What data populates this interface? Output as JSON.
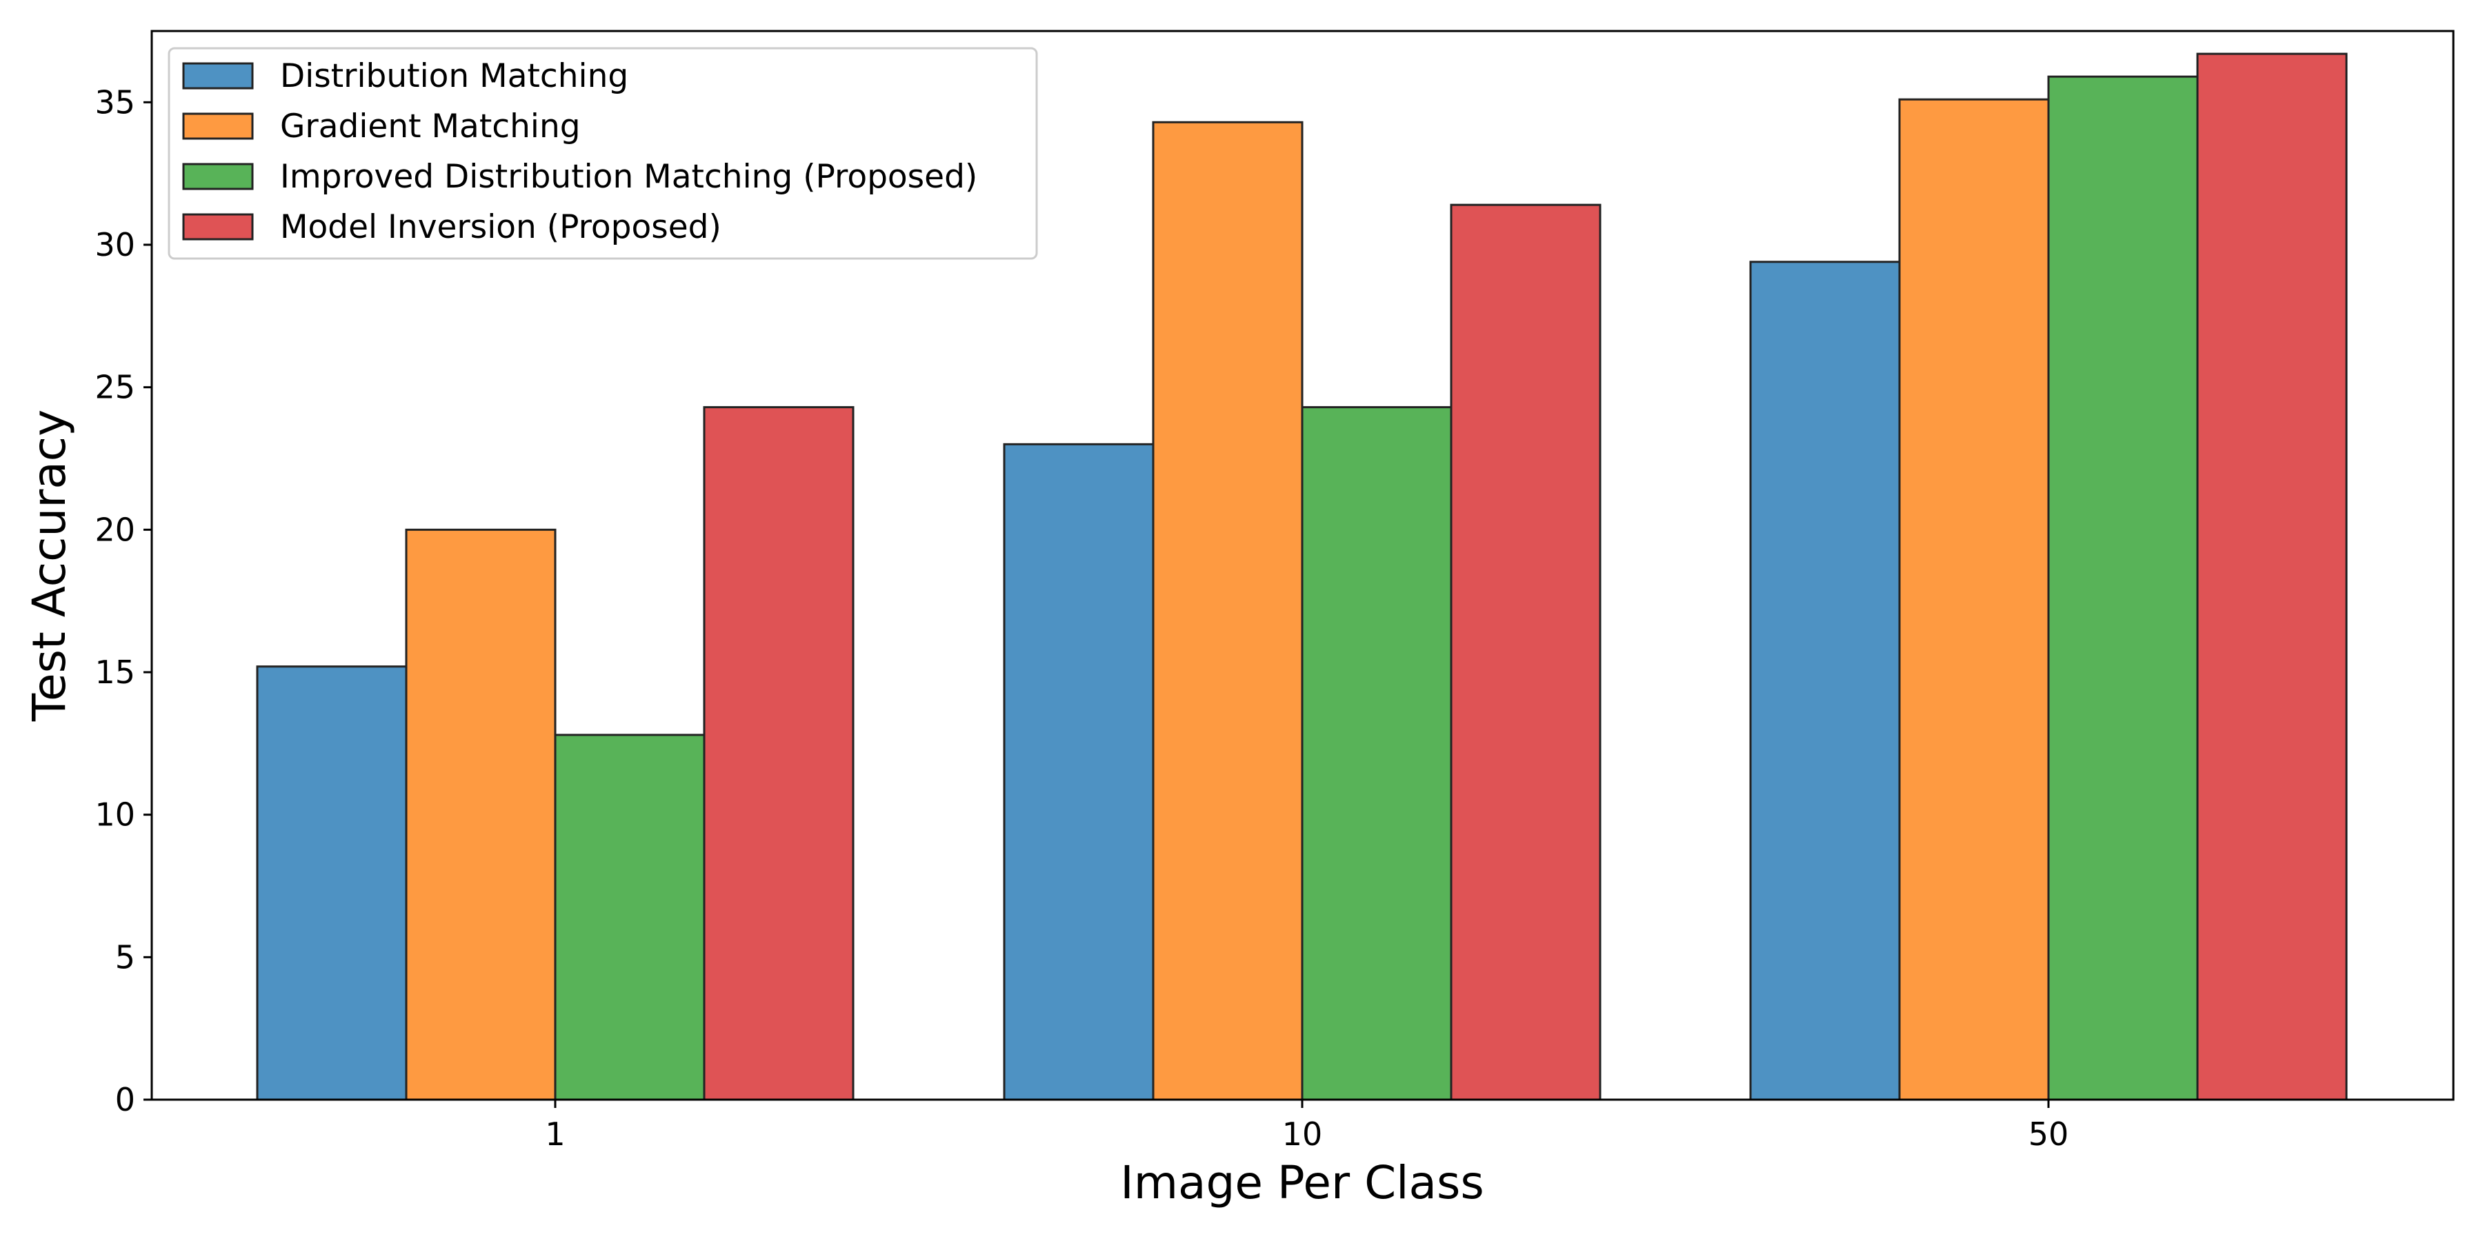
{
  "chart_data": {
    "type": "bar",
    "title": "",
    "xlabel": "Image Per Class",
    "ylabel": "Test Accuracy",
    "categories": [
      "1",
      "10",
      "50"
    ],
    "ylim": [
      0,
      37.5
    ],
    "yticks": [
      0,
      5,
      10,
      15,
      20,
      25,
      30,
      35
    ],
    "grid": false,
    "legend_position": "top-left",
    "series": [
      {
        "name": "Distribution Matching",
        "color": "#4e92c3",
        "values": [
          15.2,
          23.0,
          29.4
        ]
      },
      {
        "name": "Gradient Matching",
        "color": "#fe9a41",
        "values": [
          20.0,
          34.3,
          35.1
        ]
      },
      {
        "name": "Improved Distribution Matching (Proposed)",
        "color": "#58b358",
        "values": [
          12.8,
          24.3,
          35.9
        ]
      },
      {
        "name": "Model Inversion (Proposed)",
        "color": "#df5355",
        "values": [
          24.3,
          31.4,
          36.7
        ]
      }
    ]
  }
}
